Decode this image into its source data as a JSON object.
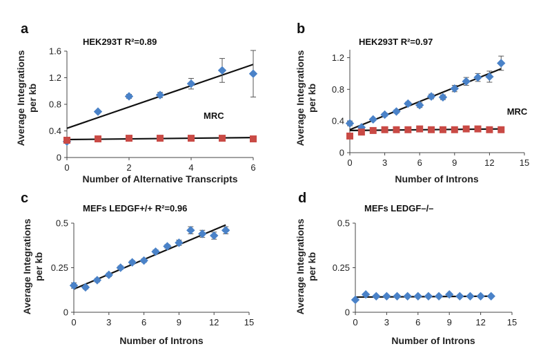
{
  "chart_data": [
    {
      "type": "scatter",
      "panel": "a",
      "title": "HEK293T R²=0.89",
      "xlabel": "Number of Alternative Transcripts",
      "ylabel": [
        "Average Integrations",
        "per kb"
      ],
      "xlim": [
        0,
        6
      ],
      "ylim": [
        0,
        1.6
      ],
      "xticks": [
        "0",
        "2",
        "4",
        "6"
      ],
      "yticks": [
        "0",
        "0.4",
        "0.8",
        "1.2",
        "1.6"
      ],
      "grid": false,
      "annotations": [
        {
          "text": "MRC",
          "x": 4.4,
          "y": 0.58
        }
      ],
      "series": [
        {
          "marker": "diamond",
          "color": "#4a82c8",
          "points": [
            {
              "x": 0,
              "y": 0.24,
              "err": 0
            },
            {
              "x": 1,
              "y": 0.69,
              "err": 0
            },
            {
              "x": 2,
              "y": 0.92,
              "err": 0.03
            },
            {
              "x": 3,
              "y": 0.94,
              "err": 0.04
            },
            {
              "x": 4,
              "y": 1.11,
              "err": 0.08
            },
            {
              "x": 5,
              "y": 1.31,
              "err": 0.18
            },
            {
              "x": 6,
              "y": 1.26,
              "err": 0.35
            }
          ],
          "fit": {
            "from": [
              0,
              0.44
            ],
            "to": [
              6,
              1.4
            ]
          }
        },
        {
          "name": "MRC",
          "marker": "square",
          "color": "#c94a45",
          "points": [
            {
              "x": 0,
              "y": 0.26,
              "err": 0
            },
            {
              "x": 1,
              "y": 0.28,
              "err": 0
            },
            {
              "x": 2,
              "y": 0.29,
              "err": 0
            },
            {
              "x": 3,
              "y": 0.29,
              "err": 0
            },
            {
              "x": 4,
              "y": 0.29,
              "err": 0
            },
            {
              "x": 5,
              "y": 0.29,
              "err": 0
            },
            {
              "x": 6,
              "y": 0.28,
              "err": 0
            }
          ],
          "fit": {
            "from": [
              0,
              0.27
            ],
            "to": [
              6,
              0.3
            ]
          }
        }
      ]
    },
    {
      "type": "scatter",
      "panel": "b",
      "title": "HEK293T R²=0.97",
      "xlabel": "Number of Introns",
      "ylabel": [
        "Average Integrations",
        "per kb"
      ],
      "xlim": [
        0,
        15
      ],
      "ylim": [
        0,
        1.3
      ],
      "xticks": [
        "0",
        "3",
        "6",
        "9",
        "12",
        "15"
      ],
      "yticks": [
        "0",
        "0.4",
        "0.8",
        "1.2"
      ],
      "grid": false,
      "annotations": [
        {
          "text": "MRC",
          "x": 13.5,
          "y": 0.48
        }
      ],
      "series": [
        {
          "marker": "diamond",
          "color": "#4a82c8",
          "points": [
            {
              "x": 0,
              "y": 0.37,
              "err": 0.03
            },
            {
              "x": 1,
              "y": 0.32,
              "err": 0
            },
            {
              "x": 2,
              "y": 0.42,
              "err": 0
            },
            {
              "x": 3,
              "y": 0.48,
              "err": 0.02
            },
            {
              "x": 4,
              "y": 0.52,
              "err": 0.02
            },
            {
              "x": 5,
              "y": 0.62,
              "err": 0.02
            },
            {
              "x": 6,
              "y": 0.6,
              "err": 0.03
            },
            {
              "x": 7,
              "y": 0.71,
              "err": 0.03
            },
            {
              "x": 8,
              "y": 0.7,
              "err": 0.03
            },
            {
              "x": 9,
              "y": 0.81,
              "err": 0.04
            },
            {
              "x": 10,
              "y": 0.9,
              "err": 0.05
            },
            {
              "x": 11,
              "y": 0.95,
              "err": 0.05
            },
            {
              "x": 12,
              "y": 0.96,
              "err": 0.07
            },
            {
              "x": 13,
              "y": 1.13,
              "err": 0.09
            }
          ],
          "fit": {
            "from": [
              0,
              0.29
            ],
            "to": [
              13,
              1.06
            ]
          }
        },
        {
          "name": "MRC",
          "marker": "square",
          "color": "#c94a45",
          "points": [
            {
              "x": 0,
              "y": 0.21,
              "err": 0
            },
            {
              "x": 1,
              "y": 0.26,
              "err": 0
            },
            {
              "x": 2,
              "y": 0.28,
              "err": 0
            },
            {
              "x": 3,
              "y": 0.29,
              "err": 0
            },
            {
              "x": 4,
              "y": 0.29,
              "err": 0
            },
            {
              "x": 5,
              "y": 0.29,
              "err": 0
            },
            {
              "x": 6,
              "y": 0.3,
              "err": 0
            },
            {
              "x": 7,
              "y": 0.29,
              "err": 0
            },
            {
              "x": 8,
              "y": 0.29,
              "err": 0
            },
            {
              "x": 9,
              "y": 0.29,
              "err": 0
            },
            {
              "x": 10,
              "y": 0.3,
              "err": 0
            },
            {
              "x": 11,
              "y": 0.3,
              "err": 0
            },
            {
              "x": 12,
              "y": 0.29,
              "err": 0
            },
            {
              "x": 13,
              "y": 0.29,
              "err": 0
            }
          ],
          "fit": {
            "from": [
              0,
              0.28
            ],
            "to": [
              13,
              0.3
            ]
          }
        }
      ]
    },
    {
      "type": "scatter",
      "panel": "c",
      "title": "MEFs LEDGF+/+ R²=0.96",
      "xlabel": "Number of Introns",
      "ylabel": [
        "Average Integrations",
        "per kb"
      ],
      "xlim": [
        0,
        15
      ],
      "ylim": [
        0,
        0.5
      ],
      "xticks": [
        "0",
        "3",
        "6",
        "9",
        "12",
        "15"
      ],
      "yticks": [
        "0",
        "0.25",
        "0.5"
      ],
      "grid": false,
      "series": [
        {
          "marker": "diamond",
          "color": "#4a82c8",
          "points": [
            {
              "x": 0,
              "y": 0.15,
              "err": 0.015
            },
            {
              "x": 1,
              "y": 0.14,
              "err": 0.01
            },
            {
              "x": 2,
              "y": 0.18,
              "err": 0.01
            },
            {
              "x": 3,
              "y": 0.21,
              "err": 0.01
            },
            {
              "x": 4,
              "y": 0.25,
              "err": 0.01
            },
            {
              "x": 5,
              "y": 0.28,
              "err": 0.01
            },
            {
              "x": 6,
              "y": 0.29,
              "err": 0.01
            },
            {
              "x": 7,
              "y": 0.34,
              "err": 0.01
            },
            {
              "x": 8,
              "y": 0.37,
              "err": 0.01
            },
            {
              "x": 9,
              "y": 0.39,
              "err": 0.015
            },
            {
              "x": 10,
              "y": 0.46,
              "err": 0.02
            },
            {
              "x": 11,
              "y": 0.44,
              "err": 0.02
            },
            {
              "x": 12,
              "y": 0.43,
              "err": 0.02
            },
            {
              "x": 13,
              "y": 0.46,
              "err": 0.02
            }
          ],
          "fit": {
            "from": [
              0,
              0.13
            ],
            "to": [
              13,
              0.49
            ]
          }
        }
      ]
    },
    {
      "type": "scatter",
      "panel": "d",
      "title": "MEFs LEDGF–/–",
      "xlabel": "Number of Introns",
      "ylabel": [
        "Average Integrations",
        "per kb"
      ],
      "xlim": [
        0,
        15
      ],
      "ylim": [
        0,
        0.5
      ],
      "xticks": [
        "0",
        "3",
        "6",
        "9",
        "12",
        "15"
      ],
      "yticks": [
        "0",
        "0.25",
        "0.5"
      ],
      "grid": false,
      "series": [
        {
          "marker": "diamond",
          "color": "#4a82c8",
          "points": [
            {
              "x": 0,
              "y": 0.07,
              "err": 0
            },
            {
              "x": 1,
              "y": 0.1,
              "err": 0
            },
            {
              "x": 2,
              "y": 0.09,
              "err": 0
            },
            {
              "x": 3,
              "y": 0.09,
              "err": 0
            },
            {
              "x": 4,
              "y": 0.09,
              "err": 0
            },
            {
              "x": 5,
              "y": 0.09,
              "err": 0
            },
            {
              "x": 6,
              "y": 0.09,
              "err": 0
            },
            {
              "x": 7,
              "y": 0.09,
              "err": 0
            },
            {
              "x": 8,
              "y": 0.09,
              "err": 0
            },
            {
              "x": 9,
              "y": 0.1,
              "err": 0
            },
            {
              "x": 10,
              "y": 0.09,
              "err": 0
            },
            {
              "x": 11,
              "y": 0.09,
              "err": 0
            },
            {
              "x": 12,
              "y": 0.09,
              "err": 0
            },
            {
              "x": 13,
              "y": 0.09,
              "err": 0
            }
          ],
          "fit": {
            "from": [
              0,
              0.085
            ],
            "to": [
              13,
              0.09
            ]
          }
        }
      ]
    }
  ]
}
